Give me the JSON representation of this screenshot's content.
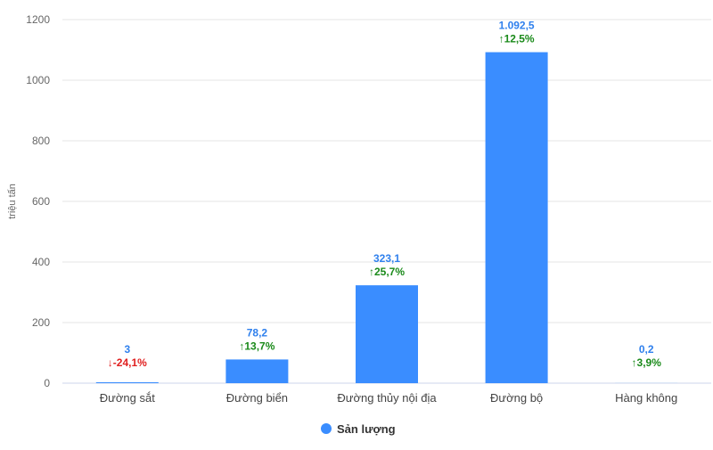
{
  "chart_data": {
    "type": "bar",
    "ylabel": "triệu tấn",
    "xlabel": "",
    "ylim": [
      0,
      1200
    ],
    "yticks": [
      "0",
      "200",
      "400",
      "600",
      "800",
      "1000",
      "1200"
    ],
    "grid": true,
    "legend_position": "bottom",
    "categories": [
      "Đường sắt",
      "Đường biển",
      "Đường thủy nội địa",
      "Đường bộ",
      "Hàng không"
    ],
    "series": [
      {
        "name": "Sản lượng",
        "color": "#3a8dff",
        "values": [
          3,
          78.2,
          323.1,
          1092.5,
          0.2
        ],
        "value_labels": [
          "3",
          "78,2",
          "323,1",
          "1.092,5",
          "0,2"
        ],
        "change_labels": [
          "↓-24,1%",
          "↑13,7%",
          "↑25,7%",
          "↑12,5%",
          "↑3,9%"
        ],
        "change_direction": [
          "down",
          "up",
          "up",
          "up",
          "up"
        ]
      }
    ],
    "colors": {
      "value_label": "#2f80ed",
      "up": "#1a8a1a",
      "down": "#e02020",
      "grid": "#e6e6e6",
      "axis": "#ccd6eb"
    }
  }
}
